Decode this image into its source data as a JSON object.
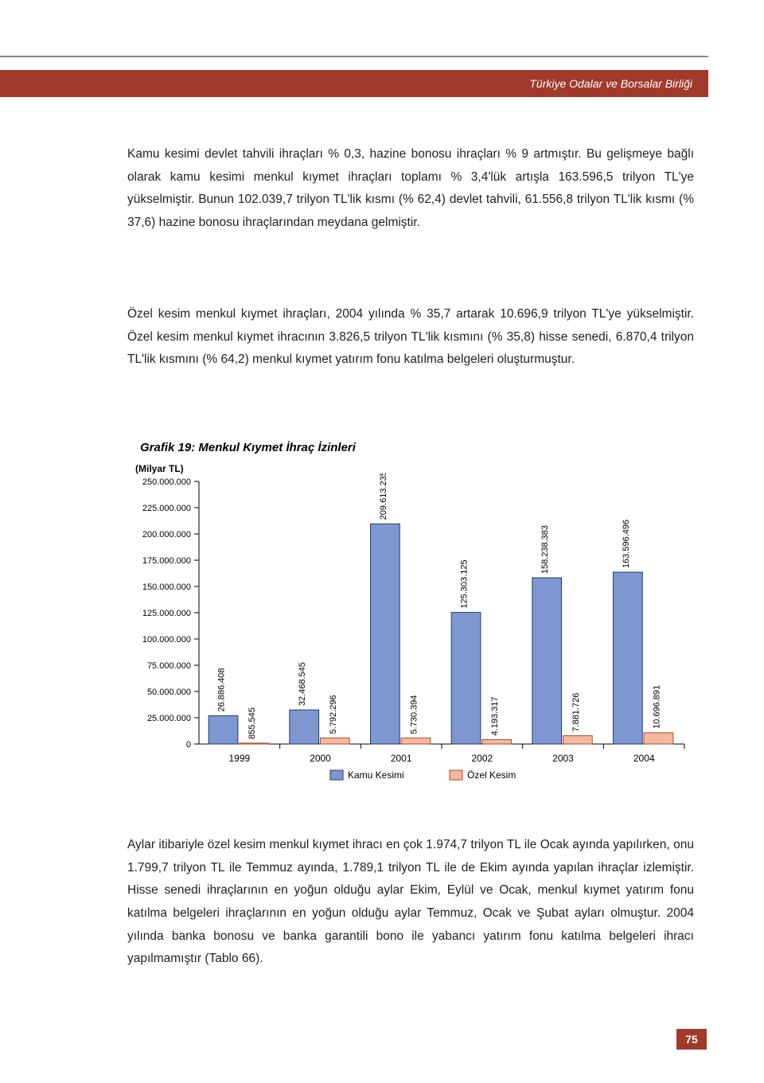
{
  "header": {
    "org": "Türkiye Odalar ve Borsalar Birliği"
  },
  "paragraphs": {
    "p1": "Kamu kesimi devlet tahvili ihraçları % 0,3, hazine bonosu ihraçları % 9 artmıştır. Bu gelişmeye bağlı olarak kamu kesimi menkul kıymet ihraçları toplamı % 3,4'lük artışla 163.596,5 trilyon TL'ye yükselmiştir. Bunun 102.039,7 trilyon TL'lik kısmı (% 62,4) devlet tahvili, 61.556,8 trilyon TL'lik kısmı (% 37,6) hazine bonosu ihraçlarından meydana gelmiştir.",
    "p2": "Özel kesim menkul kıymet ihraçları, 2004 yılında % 35,7 artarak 10.696,9 trilyon TL'ye yükselmiştir. Özel kesim menkul kıymet ihracının 3.826,5 trilyon TL'lik kısmını (% 35,8) hisse senedi, 6.870,4 trilyon TL'lik kısmını (% 64,2) menkul kıymet yatırım fonu katılma belgeleri oluşturmuştur.",
    "p3": "Aylar itibariyle özel kesim menkul kıymet ihracı en çok 1.974,7 trilyon TL ile Ocak ayında yapılırken, onu 1.799,7 trilyon TL ile Temmuz ayında, 1.789,1 trilyon TL ile de Ekim ayında yapılan ihraçlar izlemiştir. Hisse senedi ihraçlarının en yoğun olduğu aylar Ekim, Eylül ve Ocak, menkul kıymet yatırım fonu katılma belgeleri ihraçlarının en yoğun olduğu aylar Temmuz, Ocak ve Şubat ayları olmuştur. 2004 yılında banka bonosu ve banka garantili bono ile yabancı yatırım fonu katılma belgeleri ihracı yapılmamıştır (Tablo 66)."
  },
  "chart": {
    "title": "Grafik 19: Menkul Kıymet İhraç İzinleri",
    "ylabel": "(Milyar TL)",
    "type": "grouped-bar",
    "ylim": [
      0,
      250000000
    ],
    "ytick_step": 25000000,
    "yticks": [
      "0",
      "25.000.000",
      "50.000.000",
      "75.000.000",
      "100.000.000",
      "125.000.000",
      "150.000.000",
      "175.000.000",
      "200.000.000",
      "225.000.000",
      "250.000.000"
    ],
    "categories": [
      "1999",
      "2000",
      "2001",
      "2002",
      "2003",
      "2004"
    ],
    "series": [
      {
        "name": "Kamu Kesimi",
        "color": "#7f97d0",
        "stroke": "#1f3a7a",
        "values": [
          26886408,
          32468545,
          209613235,
          125303125,
          158238383,
          163596496
        ],
        "labels": [
          "26.886.408",
          "32.468.545",
          "209.613.235",
          "125.303.125",
          "158.238.383",
          "163.596.496"
        ]
      },
      {
        "name": "Özel Kesim",
        "color": "#f4b8a0",
        "stroke": "#b04a2a",
        "values": [
          855545,
          5792296,
          5730394,
          4193317,
          7881726,
          10696891
        ],
        "labels": [
          "855.545",
          "5.792.296",
          "5.730.394",
          "4.193.317",
          "7.881.726",
          "10.696.891"
        ]
      }
    ],
    "axis_color": "#000",
    "tick_fontsize": 11,
    "label_fontsize": 11,
    "bar_width": 0.38,
    "background_color": "#ffffff"
  },
  "page_number": "75"
}
